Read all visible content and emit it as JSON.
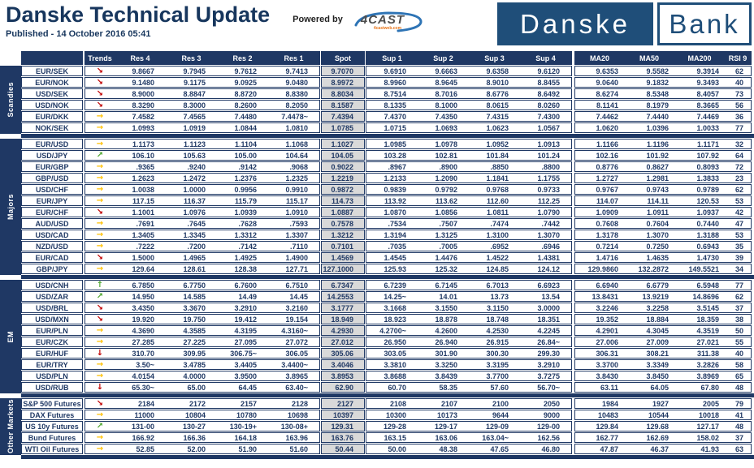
{
  "header": {
    "title": "Danske Technical Update",
    "published": "Published - 14 October 2016 05:41",
    "powered_by": "Powered by",
    "vendor": "4CAST",
    "vendor_sub": "4castweb.com",
    "logo_part1": "Danske",
    "logo_part2": "Bank"
  },
  "colors": {
    "navy": "#1f3864",
    "spot_bg": "#d9d9d9",
    "trend_up_green": "#4ea72e",
    "trend_neutral_amber": "#ffc000",
    "trend_down_red": "#c00000",
    "logo_navy": "#1f4e79",
    "swoosh_blue": "#2e74b5",
    "vendor_sub_orange": "#e8751a"
  },
  "table": {
    "columns": [
      "Trends",
      "Res 4",
      "Res 3",
      "Res 2",
      "Res 1",
      "Spot",
      "Sup 1",
      "Sup 2",
      "Sup 3",
      "Sup 4",
      "MA20",
      "MA50",
      "MA200",
      "RSI 9"
    ],
    "groups": [
      {
        "label": "Scandies",
        "rows": [
          {
            "name": "EUR/SEK",
            "trend": "down-right",
            "values": [
              "9.8667",
              "9.7945",
              "9.7612",
              "9.7413",
              "9.7070",
              "9.6910",
              "9.6663",
              "9.6358",
              "9.6120",
              "9.6353",
              "9.5582",
              "9.3914",
              "62"
            ]
          },
          {
            "name": "EUR/NOK",
            "trend": "down-right",
            "values": [
              "9.1480",
              "9.1175",
              "9.0925",
              "9.0480",
              "8.9972",
              "8.9960",
              "8.9645",
              "8.9010",
              "8.8455",
              "9.0640",
              "9.1832",
              "9.3493",
              "40"
            ]
          },
          {
            "name": "USD/SEK",
            "trend": "down-right",
            "values": [
              "8.9000",
              "8.8847",
              "8.8720",
              "8.8380",
              "8.8034",
              "8.7514",
              "8.7016",
              "8.6776",
              "8.6492",
              "8.6274",
              "8.5348",
              "8.4057",
              "73"
            ]
          },
          {
            "name": "USD/NOK",
            "trend": "down-right",
            "values": [
              "8.3290",
              "8.3000",
              "8.2600",
              "8.2050",
              "8.1587",
              "8.1335",
              "8.1000",
              "8.0615",
              "8.0260",
              "8.1141",
              "8.1979",
              "8.3665",
              "56"
            ]
          },
          {
            "name": "EUR/DKK",
            "trend": "right",
            "values": [
              "7.4582",
              "7.4565",
              "7.4480",
              "7.4478~",
              "7.4394",
              "7.4370",
              "7.4350",
              "7.4315",
              "7.4300",
              "7.4462",
              "7.4440",
              "7.4469",
              "36"
            ]
          },
          {
            "name": "NOK/SEK",
            "trend": "right",
            "values": [
              "1.0993",
              "1.0919",
              "1.0844",
              "1.0810",
              "1.0785",
              "1.0715",
              "1.0693",
              "1.0623",
              "1.0567",
              "1.0620",
              "1.0396",
              "1.0033",
              "77"
            ]
          }
        ]
      },
      {
        "label": "Majors",
        "rows": [
          {
            "name": "EUR/USD",
            "trend": "right",
            "values": [
              "1.1173",
              "1.1123",
              "1.1104",
              "1.1068",
              "1.1027",
              "1.0985",
              "1.0978",
              "1.0952",
              "1.0913",
              "1.1166",
              "1.1196",
              "1.1171",
              "32"
            ]
          },
          {
            "name": "USD/JPY",
            "trend": "up-right",
            "values": [
              "106.10",
              "105.63",
              "105.00",
              "104.64",
              "104.05",
              "103.28",
              "102.81",
              "101.84",
              "101.24",
              "102.16",
              "101.92",
              "107.92",
              "64"
            ]
          },
          {
            "name": "EUR/GBP",
            "trend": "right",
            "values": [
              ".9365",
              ".9240",
              ".9142",
              ".9068",
              "0.9022",
              ".8967",
              ".8900",
              ".8850",
              ".8800",
              "0.8776",
              "0.8627",
              "0.8093",
              "72"
            ]
          },
          {
            "name": "GBP/USD",
            "trend": "right",
            "values": [
              "1.2623",
              "1.2472",
              "1.2376",
              "1.2325",
              "1.2219",
              "1.2133",
              "1.2090",
              "1.1841",
              "1.1755",
              "1.2727",
              "1.2981",
              "1.3833",
              "23"
            ]
          },
          {
            "name": "USD/CHF",
            "trend": "right",
            "values": [
              "1.0038",
              "1.0000",
              "0.9956",
              "0.9910",
              "0.9872",
              "0.9839",
              "0.9792",
              "0.9768",
              "0.9733",
              "0.9767",
              "0.9743",
              "0.9789",
              "62"
            ]
          },
          {
            "name": "EUR/JPY",
            "trend": "right",
            "values": [
              "117.15",
              "116.37",
              "115.79",
              "115.17",
              "114.73",
              "113.92",
              "113.62",
              "112.60",
              "112.25",
              "114.07",
              "114.11",
              "120.53",
              "53"
            ]
          },
          {
            "name": "EUR/CHF",
            "trend": "down-right",
            "values": [
              "1.1001",
              "1.0976",
              "1.0939",
              "1.0910",
              "1.0887",
              "1.0870",
              "1.0856",
              "1.0811",
              "1.0790",
              "1.0909",
              "1.0911",
              "1.0937",
              "42"
            ]
          },
          {
            "name": "AUD/USD",
            "trend": "right",
            "values": [
              ".7691",
              ".7645",
              ".7628",
              ".7593",
              "0.7578",
              ".7534",
              ".7507",
              ".7474",
              ".7442",
              "0.7608",
              "0.7604",
              "0.7440",
              "47"
            ]
          },
          {
            "name": "USD/CAD",
            "trend": "right",
            "values": [
              "1.3405",
              "1.3345",
              "1.3312",
              "1.3307",
              "1.3212",
              "1.3194",
              "1.3125",
              "1.3100",
              "1.3070",
              "1.3178",
              "1.3070",
              "1.3188",
              "53"
            ]
          },
          {
            "name": "NZD/USD",
            "trend": "right",
            "values": [
              ".7222",
              ".7200",
              ".7142",
              ".7110",
              "0.7101",
              ".7035",
              ".7005",
              ".6952",
              ".6946",
              "0.7214",
              "0.7250",
              "0.6943",
              "35"
            ]
          },
          {
            "name": "EUR/CAD",
            "trend": "down-right",
            "values": [
              "1.5000",
              "1.4965",
              "1.4925",
              "1.4900",
              "1.4569",
              "1.4545",
              "1.4476",
              "1.4522",
              "1.4381",
              "1.4716",
              "1.4635",
              "1.4730",
              "39"
            ]
          },
          {
            "name": "GBP/JPY",
            "trend": "right",
            "values": [
              "129.64",
              "128.61",
              "128.38",
              "127.71",
              "127.1000",
              "125.93",
              "125.32",
              "124.85",
              "124.12",
              "129.9860",
              "132.2872",
              "149.5521",
              "34"
            ]
          }
        ]
      },
      {
        "label": "EM",
        "rows": [
          {
            "name": "USD/CNH",
            "trend": "up",
            "values": [
              "6.7850",
              "6.7750",
              "6.7600",
              "6.7510",
              "6.7347",
              "6.7239",
              "6.7145",
              "6.7013",
              "6.6923",
              "6.6940",
              "6.6779",
              "6.5948",
              "77"
            ]
          },
          {
            "name": "USD/ZAR",
            "trend": "up-right",
            "values": [
              "14.950",
              "14.585",
              "14.49",
              "14.45",
              "14.2553",
              "14.25~",
              "14.01",
              "13.73",
              "13.54",
              "13.8431",
              "13.9219",
              "14.8696",
              "62"
            ]
          },
          {
            "name": "USD/BRL",
            "trend": "down-right",
            "values": [
              "3.4350",
              "3.3670",
              "3.2910",
              "3.2160",
              "3.1777",
              "3.1668",
              "3.1550",
              "3.1150",
              "3.0000",
              "3.2246",
              "3.2258",
              "3.5145",
              "37"
            ]
          },
          {
            "name": "USD/MXN",
            "trend": "down-right",
            "values": [
              "19.920",
              "19.750",
              "19.412",
              "19.154",
              "18.949",
              "18.923",
              "18.878",
              "18.748",
              "18.351",
              "19.352",
              "18.884",
              "18.359",
              "38"
            ]
          },
          {
            "name": "EUR/PLN",
            "trend": "right",
            "values": [
              "4.3690",
              "4.3585",
              "4.3195",
              "4.3160~",
              "4.2930",
              "4.2700~",
              "4.2600",
              "4.2530",
              "4.2245",
              "4.2901",
              "4.3045",
              "4.3519",
              "50"
            ]
          },
          {
            "name": "EUR/CZK",
            "trend": "right",
            "values": [
              "27.285",
              "27.225",
              "27.095",
              "27.072",
              "27.012",
              "26.950",
              "26.940",
              "26.915",
              "26.84~",
              "27.006",
              "27.009",
              "27.021",
              "55"
            ]
          },
          {
            "name": "EUR/HUF",
            "trend": "down",
            "values": [
              "310.70",
              "309.95",
              "306.75~",
              "306.05",
              "305.06",
              "303.05",
              "301.90",
              "300.30",
              "299.30",
              "306.31",
              "308.21",
              "311.38",
              "40"
            ]
          },
          {
            "name": "EUR/TRY",
            "trend": "right",
            "values": [
              "3.50~",
              "3.4785",
              "3.4405",
              "3.4400~",
              "3.4046",
              "3.3810",
              "3.3250",
              "3.3195",
              "3.2910",
              "3.3700",
              "3.3349",
              "3.2826",
              "58"
            ]
          },
          {
            "name": "USD/PLN",
            "trend": "right",
            "values": [
              "4.0154",
              "4.0000",
              "3.9500",
              "3.8965",
              "3.8953",
              "3.8688",
              "3.8439",
              "3.7700",
              "3.7275",
              "3.8430",
              "3.8450",
              "3.8969",
              "65"
            ]
          },
          {
            "name": "USD/RUB",
            "trend": "down",
            "values": [
              "65.30~",
              "65.00",
              "64.45",
              "63.40~",
              "62.90",
              "60.70",
              "58.35",
              "57.60",
              "56.70~",
              "63.11",
              "64.05",
              "67.80",
              "48"
            ]
          }
        ]
      },
      {
        "label": "Other Markets",
        "rows": [
          {
            "name": "S&P 500 Futures",
            "trend": "down-right",
            "values": [
              "2184",
              "2172",
              "2157",
              "2128",
              "2127",
              "2108",
              "2107",
              "2100",
              "2050",
              "1984",
              "1927",
              "2005",
              "79"
            ]
          },
          {
            "name": "DAX Futures",
            "trend": "right",
            "values": [
              "11000",
              "10804",
              "10780",
              "10698",
              "10397",
              "10300",
              "10173",
              "9644",
              "9000",
              "10483",
              "10544",
              "10018",
              "41"
            ]
          },
          {
            "name": "US 10y Futures",
            "trend": "up-right",
            "values": [
              "131-00",
              "130-27",
              "130-19+",
              "130-08+",
              "129.31",
              "129-28",
              "129-17",
              "129-09",
              "129-00",
              "129.84",
              "129.68",
              "127.17",
              "48"
            ]
          },
          {
            "name": "Bund Futures",
            "trend": "right",
            "values": [
              "166.92",
              "166.36",
              "164.18",
              "163.96",
              "163.76",
              "163.15",
              "163.06",
              "163.04~",
              "162.56",
              "162.77",
              "162.69",
              "158.02",
              "37"
            ]
          },
          {
            "name": "WTI Oil Futures",
            "trend": "right",
            "values": [
              "52.85",
              "52.00",
              "51.90",
              "51.60",
              "50.44",
              "50.00",
              "48.38",
              "47.65",
              "46.80",
              "47.87",
              "46.37",
              "41.93",
              "63"
            ]
          }
        ]
      }
    ]
  }
}
